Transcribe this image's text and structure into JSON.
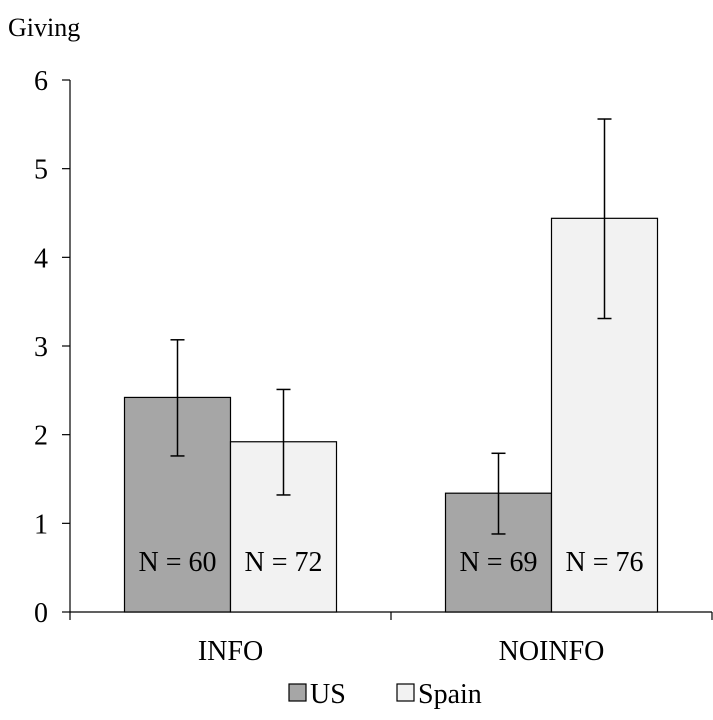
{
  "chart_data": {
    "type": "bar",
    "title": "",
    "ylabel": "Giving",
    "xlabel": "",
    "ylim": [
      0,
      6
    ],
    "yticks": [
      0,
      1,
      2,
      3,
      4,
      5,
      6
    ],
    "grid": false,
    "categories": [
      "INFO",
      "NOINFO"
    ],
    "series": [
      {
        "name": "US",
        "color": "#a6a6a6",
        "values": [
          2.42,
          1.34
        ],
        "error_low": [
          1.76,
          0.88
        ],
        "error_high": [
          3.07,
          1.79
        ],
        "n_labels": [
          "N = 60",
          "N = 69"
        ]
      },
      {
        "name": "Spain",
        "color": "#f2f2f2",
        "values": [
          1.92,
          4.44
        ],
        "error_low": [
          1.32,
          3.31
        ],
        "error_high": [
          2.51,
          5.56
        ],
        "n_labels": [
          "N = 72",
          "N = 76"
        ]
      }
    ],
    "legend_position": "bottom-center"
  }
}
